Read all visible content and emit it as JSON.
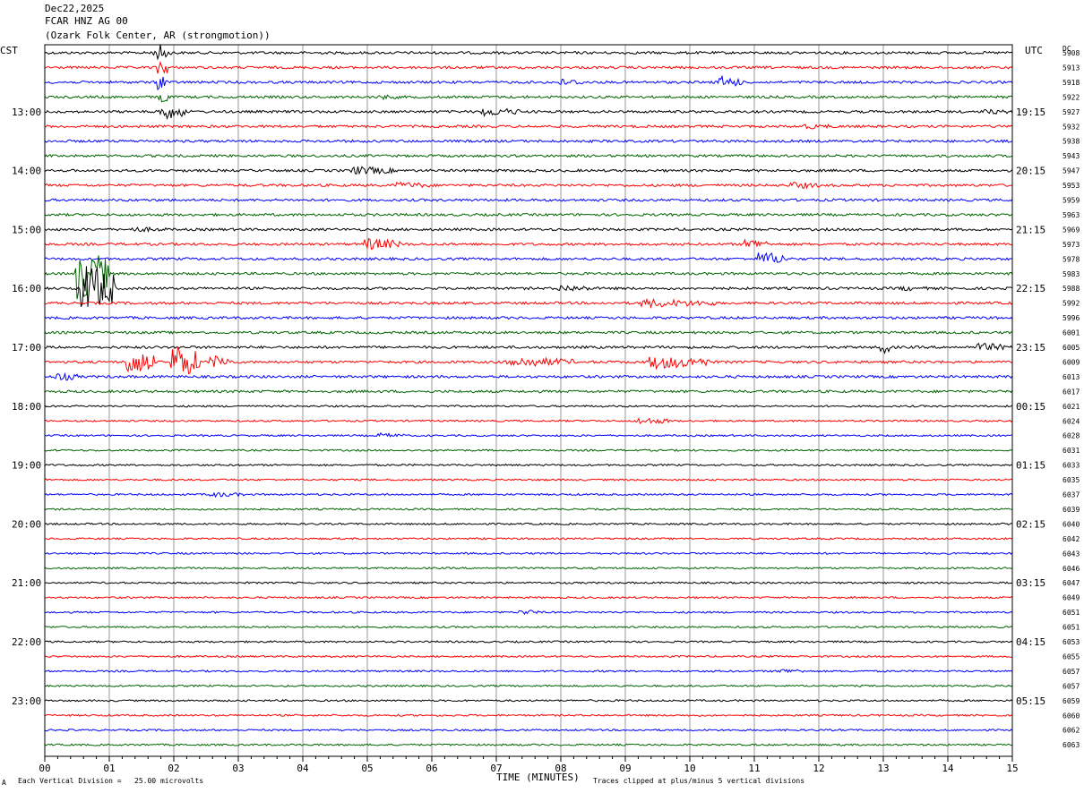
{
  "header": {
    "date": "Dec22,2025",
    "station": "FCAR HNZ AG 00",
    "location": "(Ozark Folk Center, AR (strongmotion))"
  },
  "labels": {
    "left_zone": "CST",
    "right_zone": "UTC",
    "dc_header": "DC"
  },
  "footer": {
    "vertical_division": "Each Vertical Division =   25.00 microvolts",
    "x_title": "TIME (MINUTES)",
    "clip_note": "Traces clipped at plus/minus 5 vertical divisions",
    "corner_mark": "A"
  },
  "colors": {
    "trace_cycle": [
      "#000000",
      "#ff0000",
      "#0000ff",
      "#006400"
    ],
    "grid": "#9a9a9a"
  },
  "chart_data": {
    "type": "line",
    "title": "FCAR HNZ AG 00",
    "xlabel": "TIME (MINUTES)",
    "xlim": [
      0,
      15
    ],
    "x_ticks": [
      "00",
      "01",
      "02",
      "03",
      "04",
      "05",
      "06",
      "07",
      "08",
      "09",
      "10",
      "11",
      "12",
      "13",
      "14",
      "15"
    ],
    "trace_minutes": 15,
    "trace_count": 48,
    "left_hour_labels": [
      "13:00",
      "14:00",
      "15:00",
      "16:00",
      "17:00",
      "18:00",
      "19:00",
      "20:00",
      "21:00",
      "22:00",
      "23:00"
    ],
    "right_hour_labels": [
      "19:15",
      "20:15",
      "21:15",
      "22:15",
      "23:15",
      "00:15",
      "01:15",
      "02:15",
      "03:15",
      "04:15",
      "05:15"
    ],
    "dc_offsets": [
      "5908",
      "5913",
      "5918",
      "5922",
      "5927",
      "5932",
      "5938",
      "5943",
      "5947",
      "5953",
      "5959",
      "5963",
      "5969",
      "5973",
      "5978",
      "5983",
      "5988",
      "5992",
      "5996",
      "6001",
      "6005",
      "6009",
      "6013",
      "6017",
      "6021",
      "6024",
      "6028",
      "6031",
      "6033",
      "6035",
      "6037",
      "6039",
      "6040",
      "6042",
      "6043",
      "6046",
      "6047",
      "6049",
      "6051",
      "6051",
      "6053",
      "6055",
      "6057",
      "6057",
      "6059",
      "6060",
      "6062",
      "6063"
    ],
    "events": [
      {
        "trace": 0,
        "minute": 1.6,
        "dur": 0.5,
        "amp": 3
      },
      {
        "trace": 0,
        "minute": 1.8,
        "dur": 0.1,
        "amp": 10
      },
      {
        "trace": 1,
        "minute": 1.8,
        "dur": 0.1,
        "amp": 10
      },
      {
        "trace": 2,
        "minute": 1.8,
        "dur": 0.1,
        "amp": 10
      },
      {
        "trace": 3,
        "minute": 1.8,
        "dur": 0.1,
        "amp": 10
      },
      {
        "trace": 4,
        "minute": 1.8,
        "dur": 0.4,
        "amp": 9
      },
      {
        "trace": 2,
        "minute": 8.0,
        "dur": 0.4,
        "amp": 4
      },
      {
        "trace": 2,
        "minute": 10.5,
        "dur": 0.3,
        "amp": 7
      },
      {
        "trace": 3,
        "minute": 5.2,
        "dur": 0.3,
        "amp": 3
      },
      {
        "trace": 4,
        "minute": 6.8,
        "dur": 0.6,
        "amp": 5
      },
      {
        "trace": 4,
        "minute": 14.6,
        "dur": 0.4,
        "amp": 3
      },
      {
        "trace": 5,
        "minute": 11.8,
        "dur": 0.5,
        "amp": 3
      },
      {
        "trace": 8,
        "minute": 4.8,
        "dur": 0.6,
        "amp": 5
      },
      {
        "trace": 9,
        "minute": 5.5,
        "dur": 0.5,
        "amp": 4
      },
      {
        "trace": 9,
        "minute": 11.6,
        "dur": 0.4,
        "amp": 4
      },
      {
        "trace": 12,
        "minute": 1.4,
        "dur": 0.5,
        "amp": 3
      },
      {
        "trace": 13,
        "minute": 5.0,
        "dur": 0.5,
        "amp": 7
      },
      {
        "trace": 13,
        "minute": 10.9,
        "dur": 0.3,
        "amp": 6
      },
      {
        "trace": 14,
        "minute": 11.1,
        "dur": 0.4,
        "amp": 8
      },
      {
        "trace": 15,
        "minute": 0.5,
        "dur": 0.5,
        "amp": 30
      },
      {
        "trace": 16,
        "minute": 0.6,
        "dur": 0.5,
        "amp": 30
      },
      {
        "trace": 16,
        "minute": 8.0,
        "dur": 0.5,
        "amp": 4
      },
      {
        "trace": 16,
        "minute": 13.3,
        "dur": 0.4,
        "amp": 3
      },
      {
        "trace": 17,
        "minute": 9.3,
        "dur": 1.1,
        "amp": 5
      },
      {
        "trace": 20,
        "minute": 14.5,
        "dur": 0.4,
        "amp": 5
      },
      {
        "trace": 20,
        "minute": 13.0,
        "dur": 0.1,
        "amp": 8
      },
      {
        "trace": 21,
        "minute": 1.3,
        "dur": 0.4,
        "amp": 15
      },
      {
        "trace": 21,
        "minute": 2.0,
        "dur": 0.4,
        "amp": 20
      },
      {
        "trace": 21,
        "minute": 2.6,
        "dur": 0.3,
        "amp": 8
      },
      {
        "trace": 21,
        "minute": 7.2,
        "dur": 1.0,
        "amp": 6
      },
      {
        "trace": 21,
        "minute": 9.4,
        "dur": 0.9,
        "amp": 8
      },
      {
        "trace": 22,
        "minute": 0.2,
        "dur": 0.3,
        "amp": 5
      },
      {
        "trace": 25,
        "minute": 9.2,
        "dur": 0.5,
        "amp": 4
      },
      {
        "trace": 26,
        "minute": 5.2,
        "dur": 0.4,
        "amp": 3
      },
      {
        "trace": 30,
        "minute": 2.6,
        "dur": 0.5,
        "amp": 3
      },
      {
        "trace": 38,
        "minute": 7.4,
        "dur": 0.3,
        "amp": 3
      },
      {
        "trace": 42,
        "minute": 11.4,
        "dur": 0.4,
        "amp": 3
      }
    ]
  }
}
